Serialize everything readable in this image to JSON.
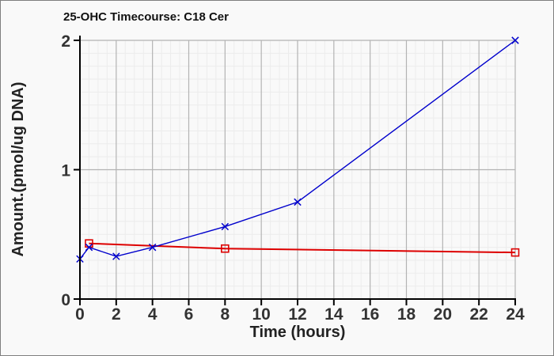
{
  "frame": {
    "page_background": "#f9f9f9",
    "border_color": "#7f7f7f"
  },
  "chart_data": {
    "type": "line",
    "title": "25-OHC Timecourse: C18 Cer",
    "xlabel": "Time (hours)",
    "ylabel": "Amount.(pmol/ug DNA)",
    "xlim": [
      0,
      24
    ],
    "ylim": [
      0,
      2
    ],
    "x_major_ticks": [
      0,
      2,
      4,
      6,
      8,
      10,
      12,
      14,
      16,
      18,
      20,
      22,
      24
    ],
    "y_major_ticks": [
      0,
      1,
      2
    ],
    "x_minor_step": 0.5,
    "y_minor_step": 0.1,
    "grid": true,
    "legend": "none",
    "colors": {
      "axis": "#000000",
      "tick_label": "#333333",
      "grid_major": "#b3b3b3",
      "grid_minor": "#ececec",
      "plot_background": "#f9f9f9"
    },
    "series": [
      {
        "name": "red-series",
        "color": "#dd0000",
        "marker": "open-square",
        "line_width": 2,
        "x": [
          0.5,
          8,
          24
        ],
        "y": [
          0.43,
          0.39,
          0.36
        ]
      },
      {
        "name": "blue-series",
        "color": "#0000cc",
        "marker": "x",
        "line_width": 1.4,
        "x": [
          0,
          0.5,
          2,
          4,
          8,
          12,
          24
        ],
        "y": [
          0.31,
          0.4,
          0.33,
          0.4,
          0.56,
          0.75,
          2.0
        ]
      }
    ]
  }
}
